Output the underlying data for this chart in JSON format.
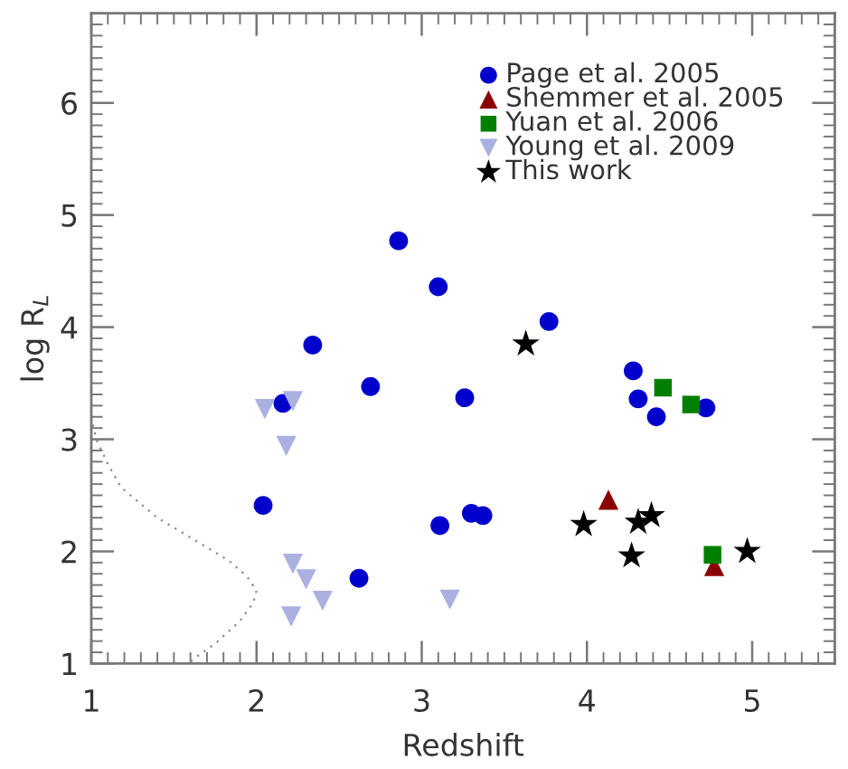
{
  "chart_data": {
    "type": "scatter",
    "xlabel": "Redshift",
    "ylabel": "log R$_{L}$",
    "xlim": [
      1,
      5.5
    ],
    "ylim": [
      1,
      6.8
    ],
    "xticks": [
      1,
      2,
      3,
      4,
      5
    ],
    "yticks": [
      1,
      2,
      3,
      4,
      5,
      6
    ],
    "legend": "top right",
    "series": [
      {
        "name": "Page et al. 2005",
        "color": "#0000cc",
        "marker": "circle",
        "x": [
          2.86,
          3.1,
          2.34,
          2.69,
          2.16,
          3.26,
          2.04,
          3.77,
          4.28,
          4.31,
          4.42,
          4.72,
          2.62,
          3.11,
          3.3,
          3.37
        ],
        "values": [
          4.77,
          4.36,
          3.84,
          3.47,
          3.32,
          3.37,
          2.41,
          4.05,
          3.61,
          3.36,
          3.2,
          3.28,
          1.76,
          2.23,
          2.34,
          2.32
        ]
      },
      {
        "name": "Shemmer et al. 2005",
        "color": "#8b0000",
        "marker": "triangle",
        "x": [
          4.13,
          4.77
        ],
        "values": [
          2.46,
          1.87
        ]
      },
      {
        "name": "Yuan et al. 2006",
        "color": "#007f00",
        "marker": "square",
        "x": [
          4.46,
          4.63,
          4.76
        ],
        "values": [
          3.46,
          3.31,
          1.97
        ]
      },
      {
        "name": "Young et al. 2009",
        "color": "#aab0e0",
        "marker": "triangle_down",
        "x": [
          2.05,
          2.22,
          2.18,
          2.22,
          2.3,
          2.4,
          2.21,
          3.17
        ],
        "values": [
          3.27,
          3.34,
          2.94,
          1.89,
          1.75,
          1.56,
          1.42,
          1.57
        ]
      },
      {
        "name": "This work",
        "color": "#000000",
        "marker": "star",
        "x": [
          3.63,
          3.98,
          4.31,
          4.39,
          4.27,
          4.97
        ],
        "values": [
          3.85,
          2.24,
          2.26,
          2.32,
          1.96,
          2.0
        ]
      },
      {
        "type": "line",
        "color": "#888888",
        "line_style": "dotted",
        "marker": "none",
        "x": [
          1.0,
          1.03,
          1.1,
          1.18,
          1.4,
          1.65,
          1.83,
          1.94,
          2.0,
          1.98,
          1.9,
          1.76,
          1.61,
          1.6
        ],
        "values": [
          3.2,
          3.0,
          2.78,
          2.57,
          2.3,
          2.08,
          1.92,
          1.78,
          1.65,
          1.54,
          1.38,
          1.19,
          1.03,
          1.0
        ]
      }
    ]
  }
}
